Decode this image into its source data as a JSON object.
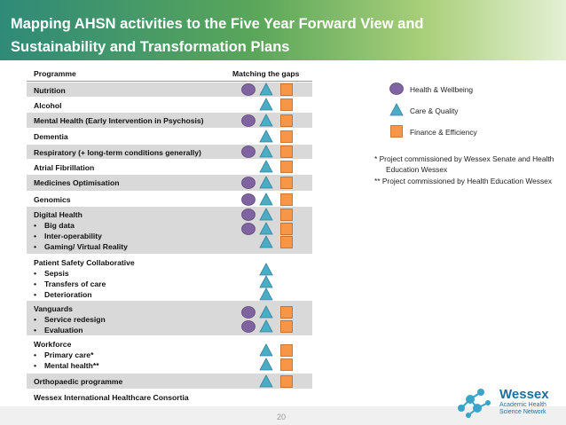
{
  "header": {
    "title_lines": [
      "Mapping AHSN activities to the  Five Year Forward View and",
      "Sustainability and Transformation Plans"
    ]
  },
  "table": {
    "columns": [
      "Programme",
      "Matching the gaps"
    ],
    "rows": [
      {
        "title": "Nutrition"
      },
      {
        "title": "Alcohol"
      },
      {
        "title": "Mental Health (Early Intervention in Psychosis)"
      },
      {
        "title": "Dementia"
      },
      {
        "title": "Respiratory (+ long-term conditions generally)"
      },
      {
        "title": "Atrial Fibrillation"
      },
      {
        "title": "Medicines Optimisation"
      },
      {
        "title": "Genomics"
      },
      {
        "title": "Digital Health",
        "items": [
          "Big data",
          "Inter-operability",
          "Gaming/ Virtual Reality"
        ]
      },
      {
        "title": "Patient Safety Collaborative",
        "items": [
          "Sepsis",
          "Transfers of care",
          "Deterioration"
        ]
      },
      {
        "title": "Vanguards",
        "items": [
          "Service redesign",
          "Evaluation"
        ]
      },
      {
        "title": "Workforce",
        "items": [
          "Primary care*",
          "Mental health**"
        ]
      },
      {
        "title": "Orthopaedic programme"
      },
      {
        "title": "Wessex International Healthcare Consortia"
      }
    ]
  },
  "legend": [
    "Health & Wellbeing",
    "Care & Quality",
    "Finance & Efficiency"
  ],
  "notes": [
    "*  Project commissioned by Wessex Senate and Health Education Wessex",
    "** Project commissioned by Health Education Wessex"
  ],
  "footer": {
    "page": "20"
  },
  "logo": {
    "name": "Wessex",
    "subtitle": "Academic Health Science Network"
  }
}
